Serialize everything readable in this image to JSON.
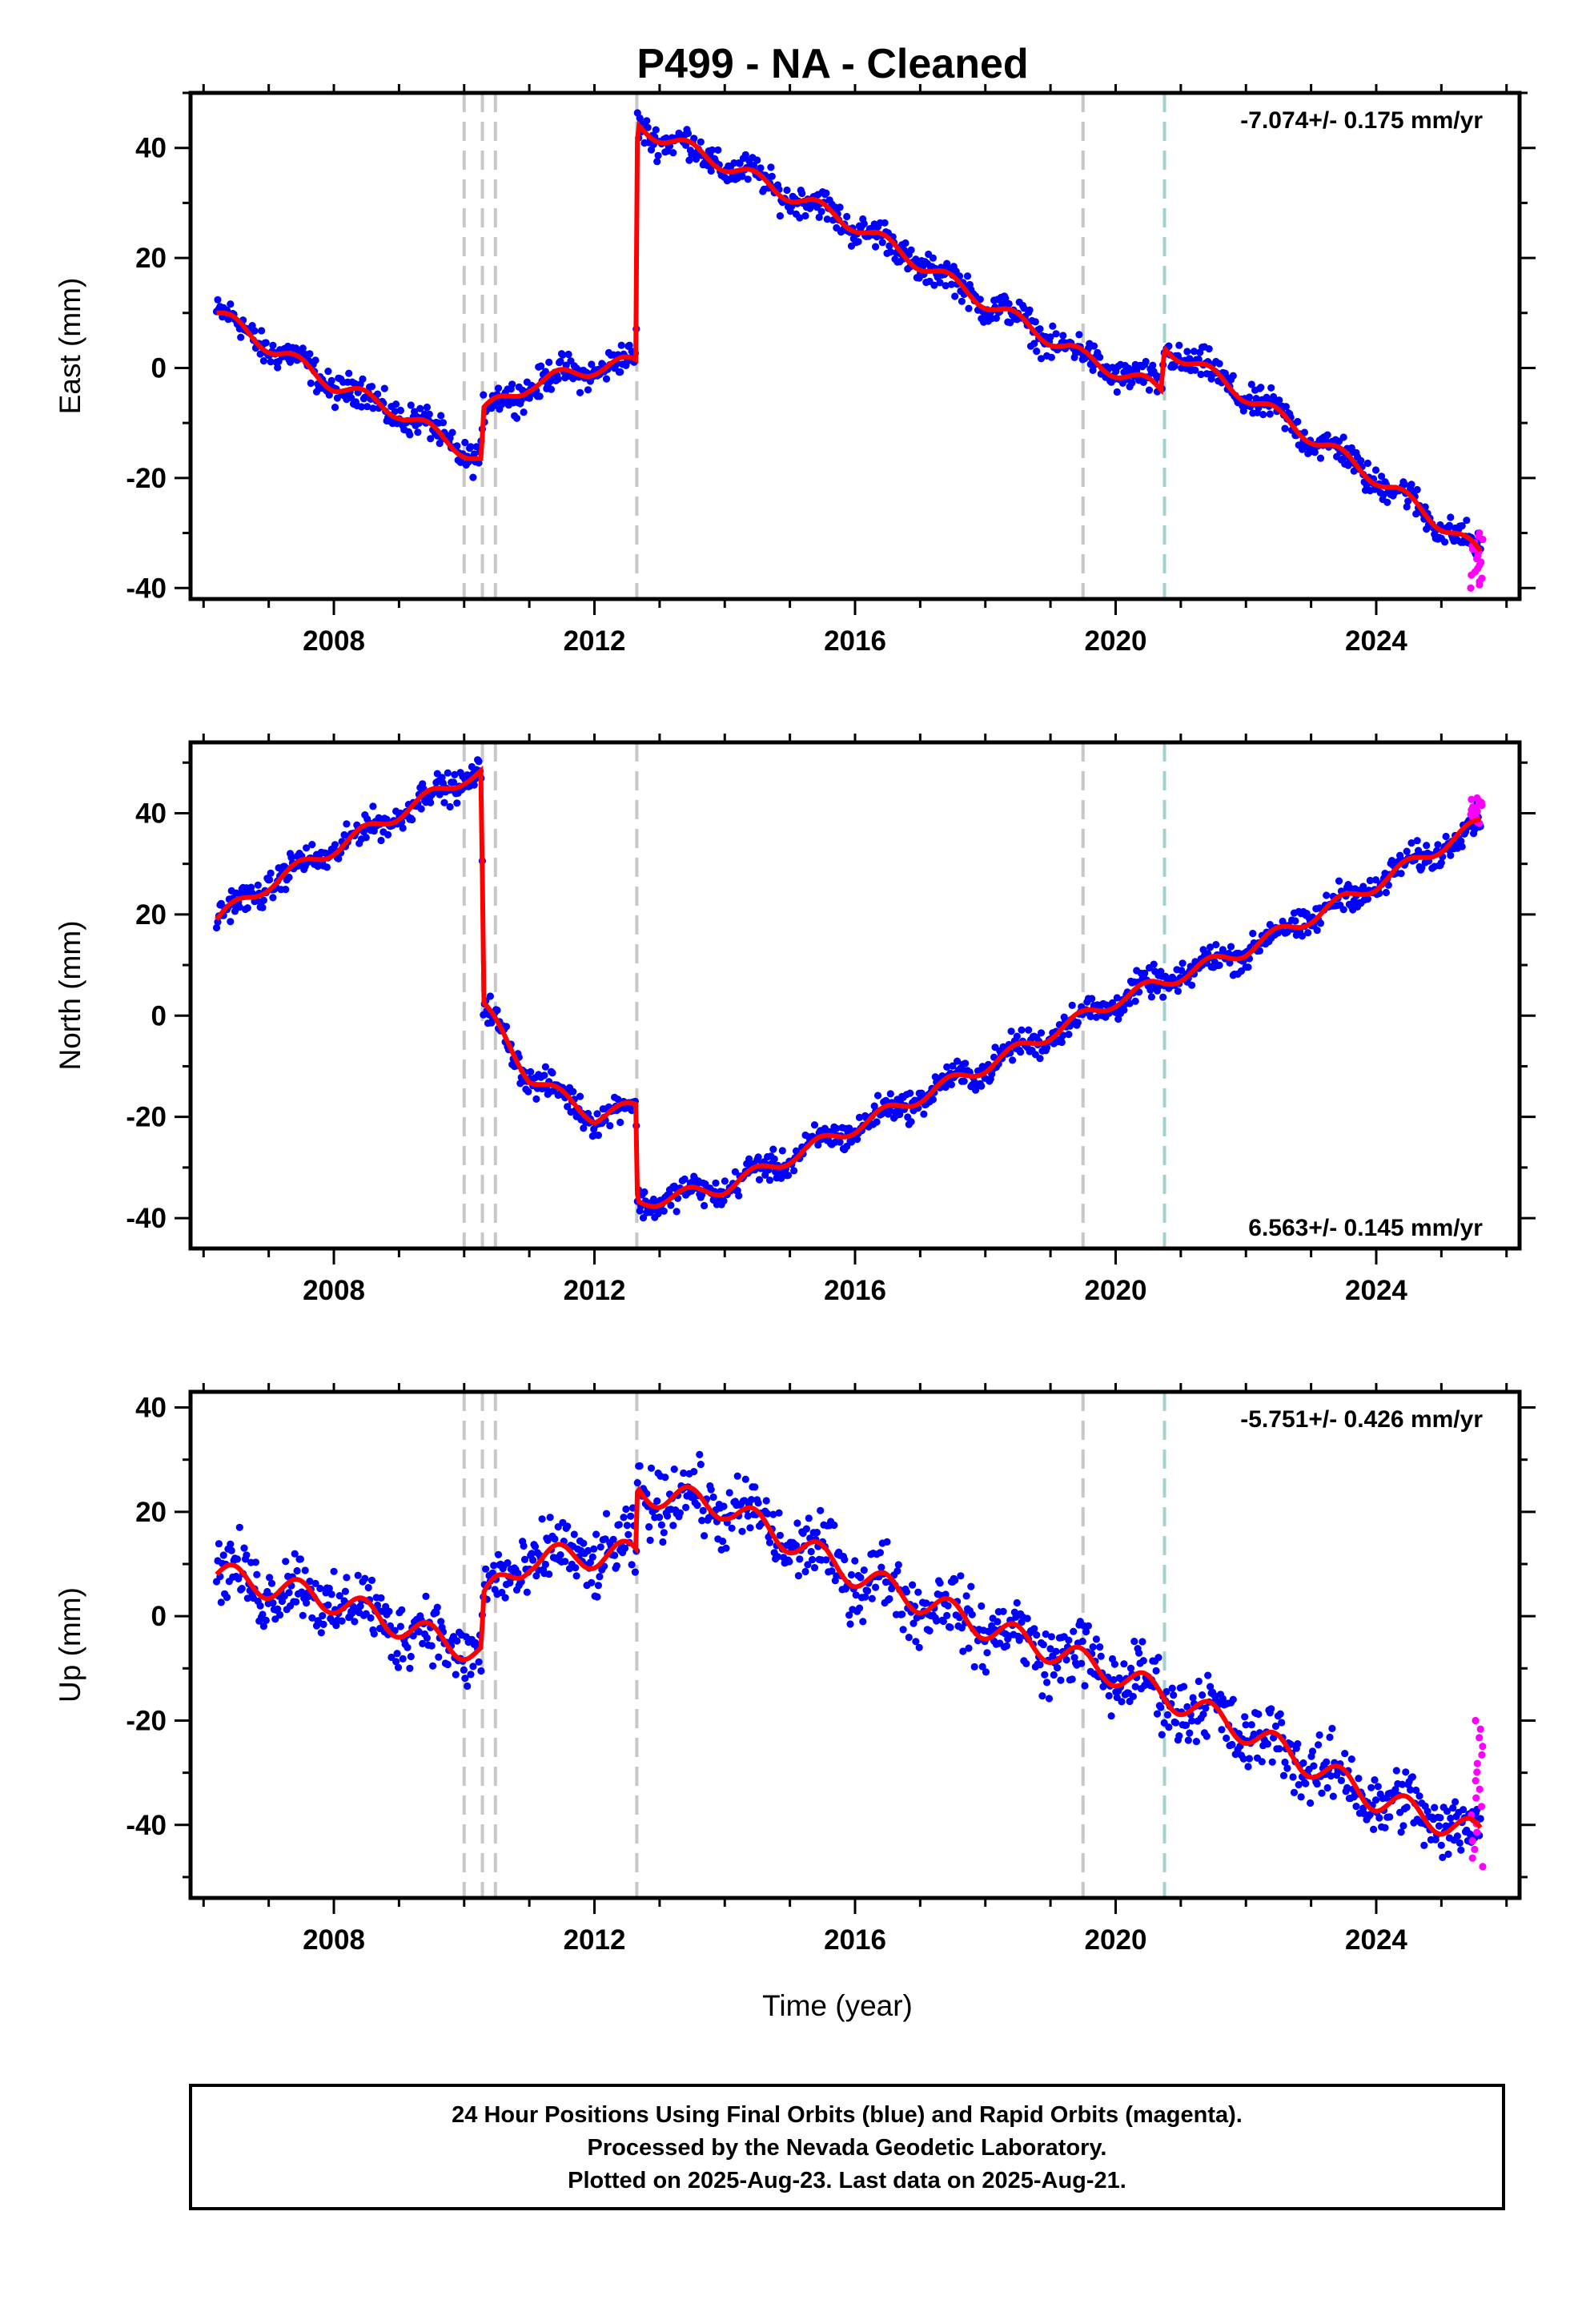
{
  "title": "P499  - NA - Cleaned",
  "footer": {
    "line1": "24 Hour Positions Using Final Orbits (blue) and Rapid Orbits (magenta).",
    "line2": "Processed by the Nevada Geodetic Laboratory.",
    "line3": "Plotted on 2025-Aug-23. Last data on 2025-Aug-21."
  },
  "colors": {
    "final_orbits": "#0000ff",
    "rapid_orbits": "#ff00ff",
    "model": "#ff0000",
    "event_gray": "#c8c8c8",
    "event_teal": "#a0d2d2"
  },
  "chart_data": [
    {
      "type": "scatter",
      "component": "East",
      "ylabel": "East (mm)",
      "xlabel": "",
      "xlim": [
        2005.8,
        2026.2
      ],
      "ylim": [
        -42,
        50
      ],
      "x_ticks": [
        2008,
        2012,
        2016,
        2020,
        2024
      ],
      "x_tick_labels": [
        "2008",
        "2012",
        "2016",
        "2020",
        "2024"
      ],
      "y_ticks": [
        -40,
        -20,
        0,
        20,
        40
      ],
      "y_tick_labels": [
        "-40",
        "-20",
        "0",
        "20",
        "40"
      ],
      "rate_label": "-7.074+/- 0.175 mm/yr",
      "rate_position": "top-right",
      "events": [
        {
          "x": 2010.0,
          "kind": "gray"
        },
        {
          "x": 2010.28,
          "kind": "gray"
        },
        {
          "x": 2010.48,
          "kind": "gray"
        },
        {
          "x": 2012.65,
          "kind": "gray"
        },
        {
          "x": 2019.5,
          "kind": "gray"
        },
        {
          "x": 2020.75,
          "kind": "teal"
        }
      ],
      "model_trace": [
        {
          "x": 2006.2,
          "y": 10
        },
        {
          "x": 2007.0,
          "y": 4
        },
        {
          "x": 2008.0,
          "y": -3
        },
        {
          "x": 2009.0,
          "y": -8
        },
        {
          "x": 2010.0,
          "y": -15
        },
        {
          "x": 2010.27,
          "y": -17
        },
        {
          "x": 2010.29,
          "y": -8
        },
        {
          "x": 2011.0,
          "y": -3
        },
        {
          "x": 2012.0,
          "y": 0
        },
        {
          "x": 2012.64,
          "y": 1
        },
        {
          "x": 2012.66,
          "y": 44
        },
        {
          "x": 2014.0,
          "y": 37
        },
        {
          "x": 2016.0,
          "y": 26
        },
        {
          "x": 2018.0,
          "y": 12
        },
        {
          "x": 2019.5,
          "y": 2
        },
        {
          "x": 2020.7,
          "y": -4
        },
        {
          "x": 2020.75,
          "y": 4
        },
        {
          "x": 2022.0,
          "y": -5
        },
        {
          "x": 2024.0,
          "y": -20
        },
        {
          "x": 2025.2,
          "y": -30
        },
        {
          "x": 2025.6,
          "y": -34
        }
      ],
      "noise_mm": 2,
      "rapid_x": [
        2025.45,
        2025.65
      ],
      "rapid_y": [
        -40,
        -30
      ]
    },
    {
      "type": "scatter",
      "component": "North",
      "ylabel": "North (mm)",
      "xlabel": "",
      "xlim": [
        2005.8,
        2026.2
      ],
      "ylim": [
        -46,
        54
      ],
      "x_ticks": [
        2008,
        2012,
        2016,
        2020,
        2024
      ],
      "x_tick_labels": [
        "2008",
        "2012",
        "2016",
        "2020",
        "2024"
      ],
      "y_ticks": [
        -40,
        -20,
        0,
        20,
        40
      ],
      "y_tick_labels": [
        "-40",
        "-20",
        "0",
        "20",
        "40"
      ],
      "rate_label": "6.563+/- 0.145 mm/yr",
      "rate_position": "bottom-right",
      "events": [
        {
          "x": 2010.0,
          "kind": "gray"
        },
        {
          "x": 2010.28,
          "kind": "gray"
        },
        {
          "x": 2010.48,
          "kind": "gray"
        },
        {
          "x": 2012.65,
          "kind": "gray"
        },
        {
          "x": 2019.5,
          "kind": "gray"
        },
        {
          "x": 2020.75,
          "kind": "teal"
        }
      ],
      "model_trace": [
        {
          "x": 2006.2,
          "y": 19
        },
        {
          "x": 2007.0,
          "y": 26
        },
        {
          "x": 2008.0,
          "y": 33
        },
        {
          "x": 2009.0,
          "y": 40
        },
        {
          "x": 2010.0,
          "y": 47
        },
        {
          "x": 2010.27,
          "y": 48
        },
        {
          "x": 2010.29,
          "y": 2
        },
        {
          "x": 2011.0,
          "y": -12
        },
        {
          "x": 2012.0,
          "y": -20
        },
        {
          "x": 2012.64,
          "y": -18
        },
        {
          "x": 2012.66,
          "y": -37
        },
        {
          "x": 2014.0,
          "y": -34
        },
        {
          "x": 2016.0,
          "y": -22
        },
        {
          "x": 2018.0,
          "y": -10
        },
        {
          "x": 2020.0,
          "y": 3
        },
        {
          "x": 2022.0,
          "y": 13
        },
        {
          "x": 2024.0,
          "y": 26
        },
        {
          "x": 2025.6,
          "y": 38
        }
      ],
      "noise_mm": 2,
      "rapid_x": [
        2025.45,
        2025.65
      ],
      "rapid_y": [
        38,
        43
      ]
    },
    {
      "type": "scatter",
      "component": "Up",
      "ylabel": "Up (mm)",
      "xlabel": "Time (year)",
      "xlim": [
        2005.8,
        2026.2
      ],
      "ylim": [
        -54,
        43
      ],
      "x_ticks": [
        2008,
        2012,
        2016,
        2020,
        2024
      ],
      "x_tick_labels": [
        "2008",
        "2012",
        "2016",
        "2020",
        "2024"
      ],
      "y_ticks": [
        -40,
        -20,
        0,
        20,
        40
      ],
      "y_tick_labels": [
        "-40",
        "-20",
        "0",
        "20",
        "40"
      ],
      "rate_label": "-5.751+/- 0.426 mm/yr",
      "rate_position": "top-right",
      "events": [
        {
          "x": 2010.0,
          "kind": "gray"
        },
        {
          "x": 2010.28,
          "kind": "gray"
        },
        {
          "x": 2010.48,
          "kind": "gray"
        },
        {
          "x": 2012.65,
          "kind": "gray"
        },
        {
          "x": 2019.5,
          "kind": "gray"
        },
        {
          "x": 2020.75,
          "kind": "teal"
        }
      ],
      "model_trace": [
        {
          "x": 2006.2,
          "y": 8
        },
        {
          "x": 2008.0,
          "y": 3
        },
        {
          "x": 2009.5,
          "y": -4
        },
        {
          "x": 2010.27,
          "y": -7
        },
        {
          "x": 2010.29,
          "y": 3
        },
        {
          "x": 2011.0,
          "y": 11
        },
        {
          "x": 2012.64,
          "y": 12
        },
        {
          "x": 2012.66,
          "y": 24
        },
        {
          "x": 2014.0,
          "y": 21
        },
        {
          "x": 2016.0,
          "y": 8
        },
        {
          "x": 2018.0,
          "y": -2
        },
        {
          "x": 2020.0,
          "y": -11
        },
        {
          "x": 2022.0,
          "y": -22
        },
        {
          "x": 2024.0,
          "y": -35
        },
        {
          "x": 2025.6,
          "y": -42
        }
      ],
      "noise_mm": 4.5,
      "rapid_x": [
        2025.45,
        2025.65
      ],
      "rapid_y": [
        -48,
        -20
      ]
    }
  ]
}
